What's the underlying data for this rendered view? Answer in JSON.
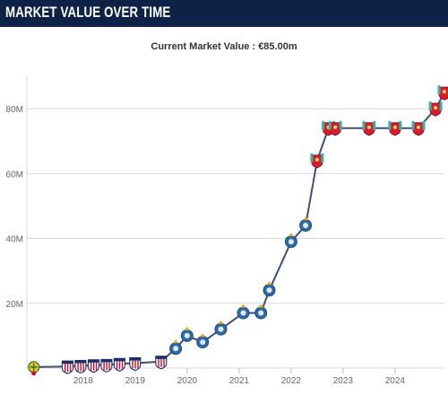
{
  "header": {
    "title": "MARKET VALUE OVER TIME"
  },
  "chart_data": {
    "type": "line",
    "title": "Current Market Value : €85.00m",
    "xlabel": "",
    "ylabel": "",
    "x_ticks": [
      {
        "value": 2018,
        "label": "2018"
      },
      {
        "value": 2019,
        "label": "2019"
      },
      {
        "value": 2020,
        "label": "2020"
      },
      {
        "value": 2021,
        "label": "2021"
      },
      {
        "value": 2022,
        "label": "2022"
      },
      {
        "value": 2023,
        "label": "2023"
      },
      {
        "value": 2024,
        "label": "2024"
      }
    ],
    "y_ticks": [
      {
        "value": 20,
        "label": "20M"
      },
      {
        "value": 40,
        "label": "40M"
      },
      {
        "value": 60,
        "label": "60M"
      },
      {
        "value": 80,
        "label": "80M"
      }
    ],
    "xlim": [
      2016.9,
      2024.95
    ],
    "ylim": [
      0,
      90
    ],
    "grid": true,
    "colors": {
      "line": "#3e5074",
      "grid": "#d8d8d8",
      "porto": "#2e6aa6",
      "porto_dark": "#1d4a7a",
      "liverpool": "#d81c2e",
      "liverpool_accent": "#3bb0a8",
      "youth": "#f0c020",
      "youth_accent": "#1e7a33",
      "header_bg": "#0e2146"
    },
    "series": [
      {
        "values": [
          {
            "x": 2017.05,
            "y": 0.3,
            "club": "youth"
          },
          {
            "x": 2017.7,
            "y": 0.5,
            "club": "madrid"
          },
          {
            "x": 2017.95,
            "y": 0.7,
            "club": "madrid"
          },
          {
            "x": 2018.2,
            "y": 0.9,
            "club": "madrid"
          },
          {
            "x": 2018.45,
            "y": 1.0,
            "club": "madrid"
          },
          {
            "x": 2018.7,
            "y": 1.3,
            "club": "madrid"
          },
          {
            "x": 2019.0,
            "y": 1.5,
            "club": "madrid"
          },
          {
            "x": 2019.5,
            "y": 2.0,
            "club": "madrid"
          },
          {
            "x": 2019.78,
            "y": 6.0,
            "club": "porto"
          },
          {
            "x": 2020.0,
            "y": 10.0,
            "club": "porto"
          },
          {
            "x": 2020.3,
            "y": 8.0,
            "club": "porto"
          },
          {
            "x": 2020.65,
            "y": 12.0,
            "club": "porto"
          },
          {
            "x": 2021.08,
            "y": 17.0,
            "club": "porto"
          },
          {
            "x": 2021.42,
            "y": 17.0,
            "club": "porto"
          },
          {
            "x": 2021.58,
            "y": 24.0,
            "club": "porto"
          },
          {
            "x": 2022.0,
            "y": 39.0,
            "club": "porto"
          },
          {
            "x": 2022.28,
            "y": 44.0,
            "club": "porto"
          },
          {
            "x": 2022.5,
            "y": 64.0,
            "club": "liverpool"
          },
          {
            "x": 2022.72,
            "y": 74.0,
            "club": "liverpool"
          },
          {
            "x": 2022.85,
            "y": 74.0,
            "club": "liverpool"
          },
          {
            "x": 2023.5,
            "y": 74.0,
            "club": "liverpool"
          },
          {
            "x": 2024.0,
            "y": 74.0,
            "club": "liverpool"
          },
          {
            "x": 2024.45,
            "y": 74.0,
            "club": "liverpool"
          },
          {
            "x": 2024.78,
            "y": 80.0,
            "club": "liverpool"
          },
          {
            "x": 2024.95,
            "y": 85.0,
            "club": "liverpool"
          }
        ]
      }
    ]
  }
}
